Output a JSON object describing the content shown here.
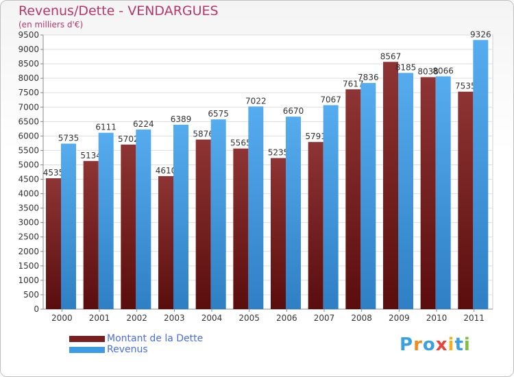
{
  "title": "Revenus/Dette - VENDARGUES",
  "subtitle": "(en milliers d'€)",
  "logo": {
    "letters": [
      "P",
      "r",
      "o",
      "x",
      "i",
      "t",
      "i"
    ],
    "colors": [
      "#3aa0e0",
      "#f28c1e",
      "#3aa0e0",
      "#e8443a",
      "#f2b01e",
      "#3aa0e0",
      "#7cc242"
    ]
  },
  "colors": {
    "dette": "#7a1f1f",
    "revenus": "#3f9be3",
    "title": "#b5366b",
    "legend_text": "#4a6ee0"
  },
  "chart_data": {
    "type": "bar",
    "title": "Revenus/Dette - VENDARGUES",
    "subtitle": "(en milliers d'€)",
    "categories": [
      "2000",
      "2001",
      "2002",
      "2003",
      "2004",
      "2005",
      "2006",
      "2007",
      "2008",
      "2009",
      "2010",
      "2011"
    ],
    "series": [
      {
        "name": "Montant de la Dette",
        "values": [
          4535,
          5134,
          5702,
          4610,
          5876,
          5565,
          5235,
          5791,
          7617,
          8567,
          8038,
          7535
        ]
      },
      {
        "name": "Revenus",
        "values": [
          5735,
          6111,
          6224,
          6389,
          6575,
          7022,
          6670,
          7067,
          7836,
          8185,
          8066,
          9326
        ]
      }
    ],
    "ylim": [
      0,
      9500
    ],
    "yticks": [
      0,
      500,
      1000,
      1500,
      2000,
      2500,
      3000,
      3500,
      4000,
      4500,
      5000,
      5500,
      6000,
      6500,
      7000,
      7500,
      8000,
      8500,
      9000,
      9500
    ],
    "grid": true,
    "legend": "bottom-left"
  }
}
